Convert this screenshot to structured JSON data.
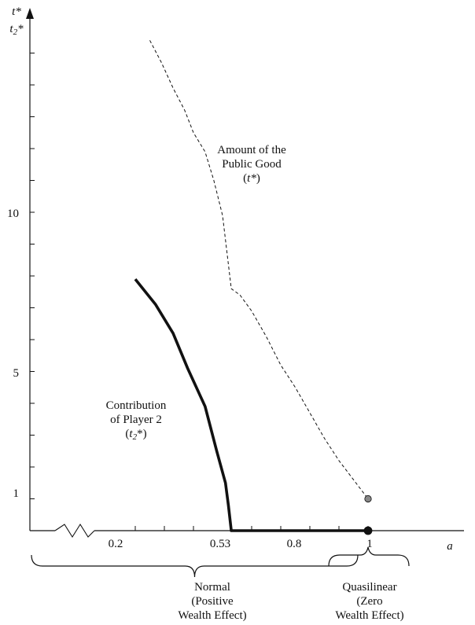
{
  "chart_data": {
    "type": "line",
    "xlabel": "a",
    "ylabel_top": "t*",
    "ylabel_sub_base": "t",
    "ylabel_sub_index": "2",
    "ylabel_sub_suffix": "*",
    "x_ticks": [
      "0.2",
      "0.53",
      "0.8",
      "1"
    ],
    "y_ticks": [
      "1",
      "5",
      "10"
    ],
    "series": [
      {
        "name": "Amount of the Public Good (t*)",
        "style": "dashed",
        "x": [
          0.25,
          0.29,
          0.33,
          0.37,
          0.4,
          0.44,
          0.47,
          0.5,
          0.53,
          0.56,
          0.6,
          0.65,
          0.7,
          0.75,
          0.8,
          0.85,
          0.9,
          0.95,
          1.0
        ],
        "y": [
          15.4,
          14.7,
          13.9,
          13.2,
          12.5,
          11.9,
          11.0,
          9.9,
          7.6,
          7.4,
          6.9,
          6.1,
          5.2,
          4.5,
          3.7,
          2.9,
          2.2,
          1.6,
          1.0
        ]
      },
      {
        "name": "Contribution of Player 2 (t2*)",
        "style": "solid-thick",
        "x": [
          0.2,
          0.27,
          0.33,
          0.38,
          0.44,
          0.48,
          0.51,
          0.52,
          0.53,
          0.6,
          0.7,
          0.8,
          0.9,
          1.0
        ],
        "y": [
          7.9,
          7.1,
          6.2,
          5.1,
          3.9,
          2.5,
          1.5,
          0.8,
          0.0,
          0.0,
          0.0,
          0.0,
          0.0,
          0.0
        ]
      }
    ],
    "points": [
      {
        "x": 1.0,
        "y": 0.0,
        "style": "filled-black"
      },
      {
        "x": 1.0,
        "y": 1.0,
        "style": "filled-gray"
      }
    ],
    "annotations": {
      "public_good": [
        "Amount of the",
        "Public Good"
      ],
      "public_good_sym": "t*",
      "player2": [
        "Contribution",
        "of Player 2"
      ],
      "player2_sym_base": "t",
      "player2_sym_sub": "2",
      "player2_sym_suffix": "*",
      "normal": [
        "Normal",
        "(Positive",
        "Wealth Effect)"
      ],
      "quasilinear": [
        "Quasilinear",
        "(Zero",
        "Wealth Effect)"
      ]
    },
    "axis_break": true,
    "grid": false
  },
  "colors": {
    "line": "#111111",
    "point_gray": "#888888"
  }
}
